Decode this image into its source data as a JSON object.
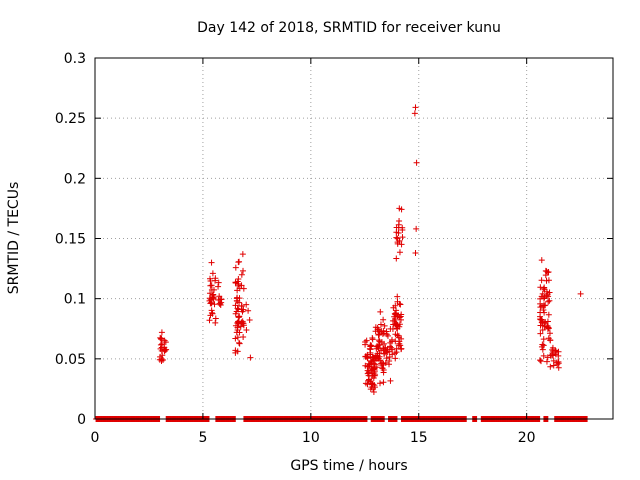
{
  "chart_data": {
    "type": "scatter",
    "title": "Day 142 of 2018, SRMTID for receiver kunu",
    "xlabel": "GPS time / hours",
    "ylabel": "SRMTID / TECUs",
    "xlim": [
      0,
      24
    ],
    "ylim": [
      0,
      0.3
    ],
    "xticks": [
      0,
      5,
      10,
      15,
      20
    ],
    "xtick_labels": [
      "0",
      "5",
      "10",
      "15",
      "20"
    ],
    "yticks": [
      0,
      0.05,
      0.1,
      0.15,
      0.2,
      0.25,
      0.3
    ],
    "ytick_labels": [
      "0",
      "0.05",
      "0.1",
      "0.15",
      "0.2",
      "0.25",
      "0.3"
    ],
    "grid": true,
    "marker": "+",
    "color": "#e00000",
    "zero_segments": [
      [
        0.05,
        3.0
      ],
      [
        3.3,
        5.3
      ],
      [
        5.6,
        6.5
      ],
      [
        6.9,
        12.6
      ],
      [
        12.8,
        13.4
      ],
      [
        13.6,
        14.0
      ],
      [
        14.2,
        17.2
      ],
      [
        17.5,
        17.7
      ],
      [
        17.9,
        20.6
      ],
      [
        20.8,
        21.0
      ],
      [
        21.3,
        22.8
      ]
    ],
    "clusters": [
      {
        "x": [
          3.0,
          3.3
        ],
        "ymin": 0.045,
        "ymax": 0.072,
        "n": 24
      },
      {
        "x": [
          5.3,
          5.6
        ],
        "ymin": 0.07,
        "ymax": 0.13,
        "n": 30
      },
      {
        "x": [
          5.7,
          5.9
        ],
        "ymin": 0.085,
        "ymax": 0.12,
        "n": 10
      },
      {
        "x": [
          6.5,
          6.9
        ],
        "ymin": 0.045,
        "ymax": 0.137,
        "n": 60
      },
      {
        "x": [
          7.0,
          7.2
        ],
        "ymin": 0.05,
        "ymax": 0.107,
        "n": 4
      },
      {
        "x": [
          12.5,
          13.0
        ],
        "ymin": 0.02,
        "ymax": 0.07,
        "n": 70
      },
      {
        "x": [
          13.0,
          13.5
        ],
        "ymin": 0.025,
        "ymax": 0.09,
        "n": 60
      },
      {
        "x": [
          13.5,
          13.8
        ],
        "ymin": 0.02,
        "ymax": 0.085,
        "n": 20
      },
      {
        "x": [
          13.8,
          14.2
        ],
        "ymin": 0.045,
        "ymax": 0.11,
        "n": 50
      },
      {
        "x": [
          13.95,
          14.25
        ],
        "ymin": 0.13,
        "ymax": 0.175,
        "n": 18
      },
      {
        "x": [
          20.6,
          21.1
        ],
        "ymin": 0.04,
        "ymax": 0.132,
        "n": 70
      },
      {
        "x": [
          21.1,
          21.5
        ],
        "ymin": 0.04,
        "ymax": 0.065,
        "n": 22
      }
    ],
    "points": [
      {
        "x": 14.85,
        "y": 0.259
      },
      {
        "x": 14.82,
        "y": 0.254
      },
      {
        "x": 14.9,
        "y": 0.213
      },
      {
        "x": 14.88,
        "y": 0.158
      },
      {
        "x": 14.85,
        "y": 0.138
      },
      {
        "x": 22.5,
        "y": 0.104
      },
      {
        "x": 7.2,
        "y": 0.051
      },
      {
        "x": 20.7,
        "y": 0.132
      },
      {
        "x": 6.85,
        "y": 0.137
      },
      {
        "x": 5.4,
        "y": 0.13
      },
      {
        "x": 3.1,
        "y": 0.072
      },
      {
        "x": 14.1,
        "y": 0.175
      }
    ]
  }
}
